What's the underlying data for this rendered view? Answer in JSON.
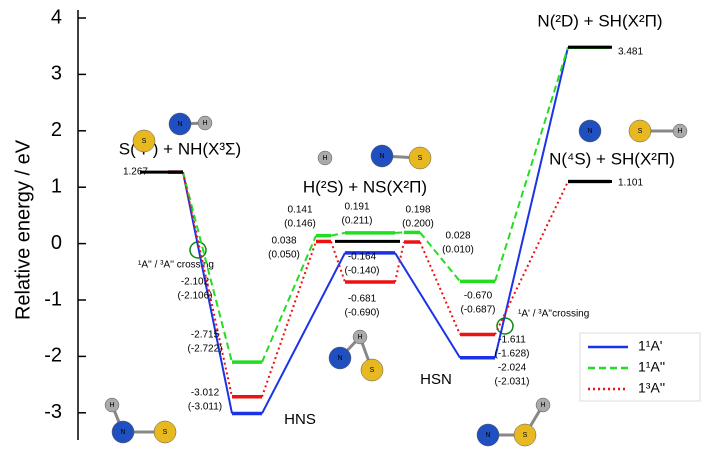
{
  "chart_data": {
    "type": "energy-profile",
    "ylabel": "Relative energy / eV",
    "ylim": [
      -3.4,
      4
    ],
    "yticks": [
      -3,
      -2,
      -1,
      0,
      1,
      2,
      3,
      4
    ],
    "categories": [
      null,
      "HNS",
      null,
      null,
      null,
      "HSN",
      null
    ],
    "series": [
      {
        "name": "1¹A'",
        "color": "#1a33e6",
        "style": "solid",
        "values": [
          1.267,
          -3.012,
          null,
          -0.164,
          null,
          -2.024,
          3.481
        ],
        "value_labels": [
          null,
          "-3.012",
          null,
          "-0.164",
          null,
          "-2.024",
          null
        ],
        "alt_labels": [
          null,
          "(-3.011)",
          null,
          "(-0.140)",
          null,
          "(-2.031)",
          null
        ]
      },
      {
        "name": "1¹A''",
        "color": "#22dd22",
        "style": "dashed",
        "values": [
          1.267,
          -2.102,
          0.141,
          0.191,
          0.198,
          -0.67,
          3.481
        ],
        "value_labels": [
          null,
          "-2.102",
          "0.141",
          "0.191",
          "0.198",
          "-0.670",
          null
        ],
        "alt_labels": [
          null,
          "(-2.106)",
          "(0.146)",
          "(0.211)",
          "(0.200)",
          "(-0.687)",
          null
        ]
      },
      {
        "name": "1³A''",
        "color": "#ee1111",
        "style": "dotted",
        "values": [
          1.267,
          -2.715,
          0.038,
          -0.681,
          0.028,
          -1.611,
          1.101
        ],
        "value_labels": [
          null,
          "-2.715",
          "0.038",
          "-0.681",
          "0.028",
          "-1.611",
          null
        ],
        "alt_labels": [
          null,
          "(-2.722)",
          "(0.050)",
          "(-0.690)",
          "(0.010)",
          "(-1.628)",
          null
        ]
      }
    ],
    "levels": [
      {
        "label": "S(³P) + NH(X³Σ)",
        "value": 1.267,
        "value_label": "1.267"
      },
      {
        "label": "H(²S) + NS(X²Π)",
        "value": 0.04
      },
      {
        "label": "N(²D) + SH(X²Π)",
        "value": 3.481,
        "value_label": "3.481"
      },
      {
        "label": "N(⁴S) + SH(X²Π)",
        "value": 1.101,
        "value_label": "1.101"
      }
    ],
    "annotations": [
      "¹A'' / ³A'' crossing",
      "¹A' / ³A''crossing"
    ],
    "atoms": [
      "S",
      "N",
      "H"
    ]
  }
}
